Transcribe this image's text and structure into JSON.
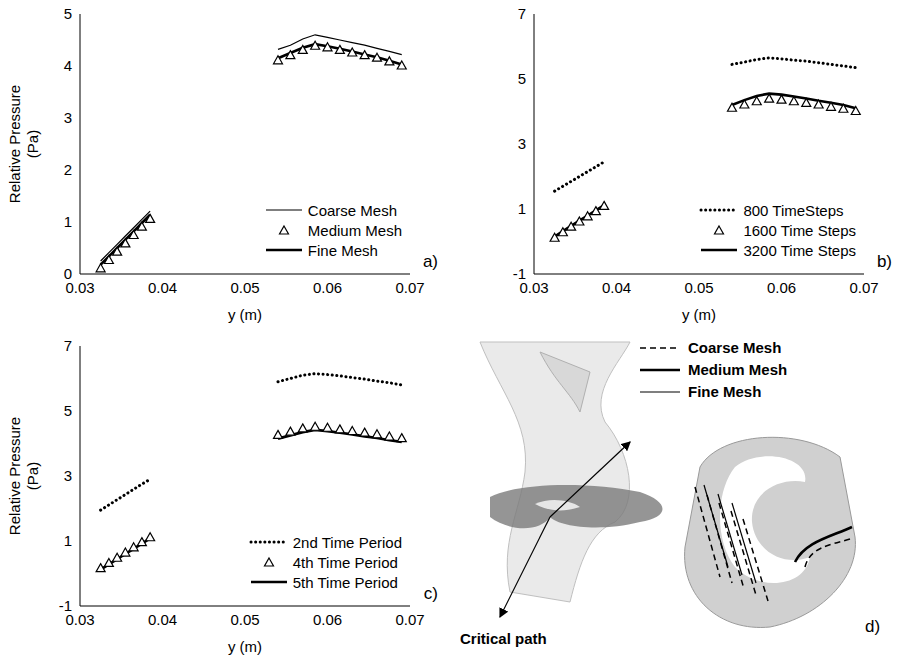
{
  "chart_data": [
    {
      "type": "line",
      "label": "a)",
      "x_label": "y (m)",
      "y_label": "Relative Pressure (Pa)",
      "x": [
        0.0325,
        0.0335,
        0.0345,
        0.0355,
        0.0365,
        0.0375,
        0.0385,
        0.0465,
        0.054,
        0.0555,
        0.057,
        0.0585,
        0.06,
        0.0615,
        0.063,
        0.0645,
        0.066,
        0.0675,
        0.069
      ],
      "xlim": [
        0.03,
        0.07
      ],
      "xticks": [
        0.03,
        0.04,
        0.05,
        0.06,
        0.07
      ],
      "ylim": [
        0,
        5
      ],
      "yticks": [
        0,
        1,
        2,
        3,
        4,
        5
      ],
      "legend": "lower right",
      "series": [
        {
          "name": "Coarse Mesh",
          "color": "#000000",
          "line_style": "thin",
          "marker": "none",
          "values": [
            0.25,
            0.41,
            0.57,
            0.73,
            0.89,
            1.05,
            1.21,
            null,
            4.32,
            4.4,
            4.52,
            4.6,
            4.55,
            4.5,
            4.45,
            4.4,
            4.34,
            4.28,
            4.22
          ]
        },
        {
          "name": "Medium Mesh",
          "color": "#000000",
          "line_style": "none",
          "marker": "triangle",
          "values": [
            0.1,
            0.26,
            0.42,
            0.58,
            0.74,
            0.9,
            1.05,
            null,
            4.1,
            4.2,
            4.3,
            4.38,
            4.35,
            4.3,
            4.25,
            4.2,
            4.15,
            4.08,
            4.0
          ]
        },
        {
          "name": "Fine Mesh",
          "color": "#000000",
          "line_style": "thick",
          "marker": "none",
          "values": [
            0.18,
            0.34,
            0.5,
            0.66,
            0.82,
            0.98,
            1.14,
            null,
            4.15,
            4.25,
            4.35,
            4.42,
            4.38,
            4.33,
            4.28,
            4.22,
            4.17,
            4.1,
            4.03
          ]
        }
      ]
    },
    {
      "type": "line",
      "label": "b)",
      "x_label": "y (m)",
      "x": [
        0.0325,
        0.0335,
        0.0345,
        0.0355,
        0.0365,
        0.0375,
        0.0385,
        0.0465,
        0.054,
        0.0555,
        0.057,
        0.0585,
        0.06,
        0.0615,
        0.063,
        0.0645,
        0.066,
        0.0675,
        0.069
      ],
      "xlim": [
        0.03,
        0.07
      ],
      "xticks": [
        0.03,
        0.04,
        0.05,
        0.06,
        0.07
      ],
      "ylim": [
        -1,
        7
      ],
      "yticks": [
        -1,
        1,
        3,
        5,
        7
      ],
      "legend": "lower right",
      "series": [
        {
          "name": "800 TimeSteps",
          "color": "#000000",
          "line_style": "dotted",
          "marker": "none",
          "values": [
            1.55,
            1.7,
            1.85,
            2.0,
            2.15,
            2.3,
            2.45,
            null,
            5.45,
            5.52,
            5.6,
            5.65,
            5.62,
            5.58,
            5.55,
            5.5,
            5.45,
            5.4,
            5.35
          ]
        },
        {
          "name": "1600 Time Steps",
          "color": "#000000",
          "line_style": "none",
          "marker": "triangle",
          "values": [
            0.1,
            0.27,
            0.44,
            0.6,
            0.76,
            0.92,
            1.08,
            null,
            4.1,
            4.2,
            4.3,
            4.38,
            4.35,
            4.3,
            4.25,
            4.2,
            4.13,
            4.07,
            4.0
          ]
        },
        {
          "name": "3200 Time Steps",
          "color": "#000000",
          "line_style": "thick",
          "marker": "none",
          "values": [
            0.15,
            0.32,
            0.48,
            0.64,
            0.8,
            0.96,
            1.12,
            null,
            4.2,
            4.35,
            4.48,
            4.55,
            4.52,
            4.46,
            4.4,
            4.33,
            4.27,
            4.2,
            4.1
          ]
        }
      ]
    },
    {
      "type": "line",
      "label": "c)",
      "x_label": "y (m)",
      "y_label": "Relative Pressure (Pa)",
      "x": [
        0.0325,
        0.0335,
        0.0345,
        0.0355,
        0.0365,
        0.0375,
        0.0385,
        0.0465,
        0.054,
        0.0555,
        0.057,
        0.0585,
        0.06,
        0.0615,
        0.063,
        0.0645,
        0.066,
        0.0675,
        0.069
      ],
      "xlim": [
        0.03,
        0.07
      ],
      "xticks": [
        0.03,
        0.04,
        0.05,
        0.06,
        0.07
      ],
      "ylim": [
        -1,
        7
      ],
      "yticks": [
        -1,
        1,
        3,
        5,
        7
      ],
      "legend": "lower right",
      "series": [
        {
          "name": "2nd Time Period",
          "color": "#000000",
          "line_style": "dotted",
          "marker": "none",
          "values": [
            1.95,
            2.11,
            2.27,
            2.43,
            2.59,
            2.75,
            2.9,
            null,
            5.9,
            6.0,
            6.1,
            6.15,
            6.12,
            6.08,
            6.03,
            5.98,
            5.92,
            5.87,
            5.8
          ]
        },
        {
          "name": "4th Time Period",
          "color": "#000000",
          "line_style": "none",
          "marker": "triangle",
          "values": [
            0.15,
            0.31,
            0.47,
            0.63,
            0.79,
            0.95,
            1.1,
            null,
            4.25,
            4.35,
            4.45,
            4.5,
            4.47,
            4.42,
            4.37,
            4.32,
            4.27,
            4.2,
            4.15
          ]
        },
        {
          "name": "5th Time Period",
          "color": "#000000",
          "line_style": "thick",
          "marker": "none",
          "values": [
            0.12,
            0.28,
            0.44,
            0.6,
            0.76,
            0.92,
            1.08,
            null,
            4.15,
            4.25,
            4.35,
            4.42,
            4.38,
            4.33,
            4.28,
            4.22,
            4.17,
            4.1,
            4.05
          ]
        }
      ]
    }
  ],
  "diagram": {
    "label": "d)",
    "annotation": "Critical path",
    "legend": [
      {
        "name": "Coarse Mesh",
        "line_style": "dashed"
      },
      {
        "name": "Medium Mesh",
        "line_style": "thick"
      },
      {
        "name": "Fine Mesh",
        "line_style": "thin"
      }
    ]
  }
}
